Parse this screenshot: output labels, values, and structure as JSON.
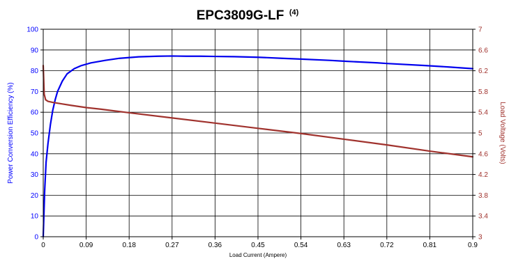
{
  "chart_data": {
    "type": "line",
    "title": "EPC3809G-LF",
    "title_superscript": "(4)",
    "xlabel": "Load Current (Ampere)",
    "y_left_label": "Power Conversion Efficiency (%)",
    "y_right_label": "Load Voltage (Volts)",
    "xlim": [
      0,
      0.9
    ],
    "ylim_left": [
      0,
      100
    ],
    "ylim_right": [
      3,
      7
    ],
    "x_ticks": [
      "0",
      "0.09",
      "0.18",
      "0.27",
      "0.36",
      "0.45",
      "0.54",
      "0.63",
      "0.72",
      "0.81",
      "0.9"
    ],
    "y_left_ticks": [
      "0",
      "10",
      "20",
      "30",
      "40",
      "50",
      "60",
      "70",
      "80",
      "90",
      "100"
    ],
    "y_right_ticks": [
      "3",
      "3.4",
      "3.8",
      "4.2",
      "4.6",
      "5",
      "5.4",
      "5.8",
      "6.2",
      "6.6",
      "7"
    ],
    "grid": true,
    "legend": "none",
    "colors": {
      "efficiency": "#0000ee",
      "voltage": "#a0322d",
      "left_axis": "#0000ff",
      "right_axis": "#a0322d"
    },
    "series": [
      {
        "axis": "left",
        "x": [
          0,
          0.003,
          0.006,
          0.01,
          0.015,
          0.02,
          0.025,
          0.03,
          0.04,
          0.05,
          0.065,
          0.08,
          0.1,
          0.13,
          0.16,
          0.2,
          0.24,
          0.27,
          0.3,
          0.33,
          0.36,
          0.4,
          0.45,
          0.5,
          0.54,
          0.6,
          0.63,
          0.7,
          0.72,
          0.8,
          0.85,
          0.9
        ],
        "y": [
          0,
          22,
          36,
          45,
          54,
          61,
          66,
          70,
          75,
          78.5,
          81,
          82.5,
          83.8,
          85,
          86,
          86.7,
          87,
          87.1,
          87,
          87,
          86.9,
          86.8,
          86.5,
          86,
          85.6,
          85,
          84.6,
          83.8,
          83.5,
          82.5,
          81.8,
          81
        ]
      },
      {
        "axis": "right",
        "x": [
          0,
          0.002,
          0.005,
          0.01,
          0.02,
          0.04,
          0.06,
          0.09,
          0.12,
          0.18,
          0.27,
          0.36,
          0.45,
          0.54,
          0.63,
          0.72,
          0.81,
          0.9
        ],
        "y": [
          6.3,
          5.75,
          5.64,
          5.61,
          5.59,
          5.56,
          5.53,
          5.49,
          5.46,
          5.39,
          5.29,
          5.19,
          5.09,
          4.99,
          4.88,
          4.77,
          4.65,
          4.54
        ]
      }
    ]
  }
}
